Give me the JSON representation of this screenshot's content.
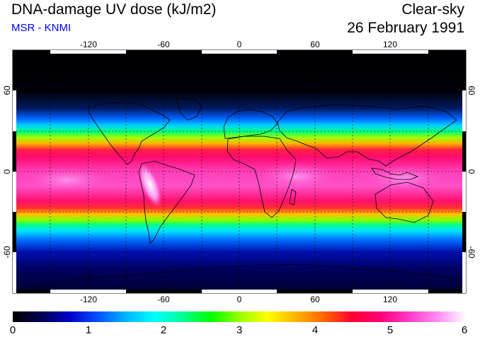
{
  "header": {
    "title": "DNA-damage UV dose (kJ/m2)",
    "subtitle": "MSR - KNMI",
    "condition": "Clear-sky",
    "date": "26 February 1991"
  },
  "colors": {
    "subtitle": "#0000ff",
    "scale": [
      "#000000",
      "#000050",
      "#0000c8",
      "#0050ff",
      "#00b4ff",
      "#00ffff",
      "#00ff96",
      "#00ff00",
      "#96ff00",
      "#ffff00",
      "#ffb400",
      "#ff6400",
      "#ff0032",
      "#ff0078",
      "#ff3cc8",
      "#ff8cf0",
      "#ffffff"
    ]
  },
  "map": {
    "lon_ticks": [
      "-120",
      "-60",
      "0",
      "60",
      "120"
    ],
    "lat_ticks": [
      "60",
      "0",
      "-60"
    ],
    "lon_range": [
      -180,
      180
    ],
    "lat_range": [
      -90,
      90
    ],
    "grid": "dashed every 30 degrees"
  },
  "colorbar": {
    "ticks": [
      "0",
      "1",
      "2",
      "3",
      "4",
      "5",
      "6"
    ],
    "range": [
      0,
      6
    ]
  }
}
